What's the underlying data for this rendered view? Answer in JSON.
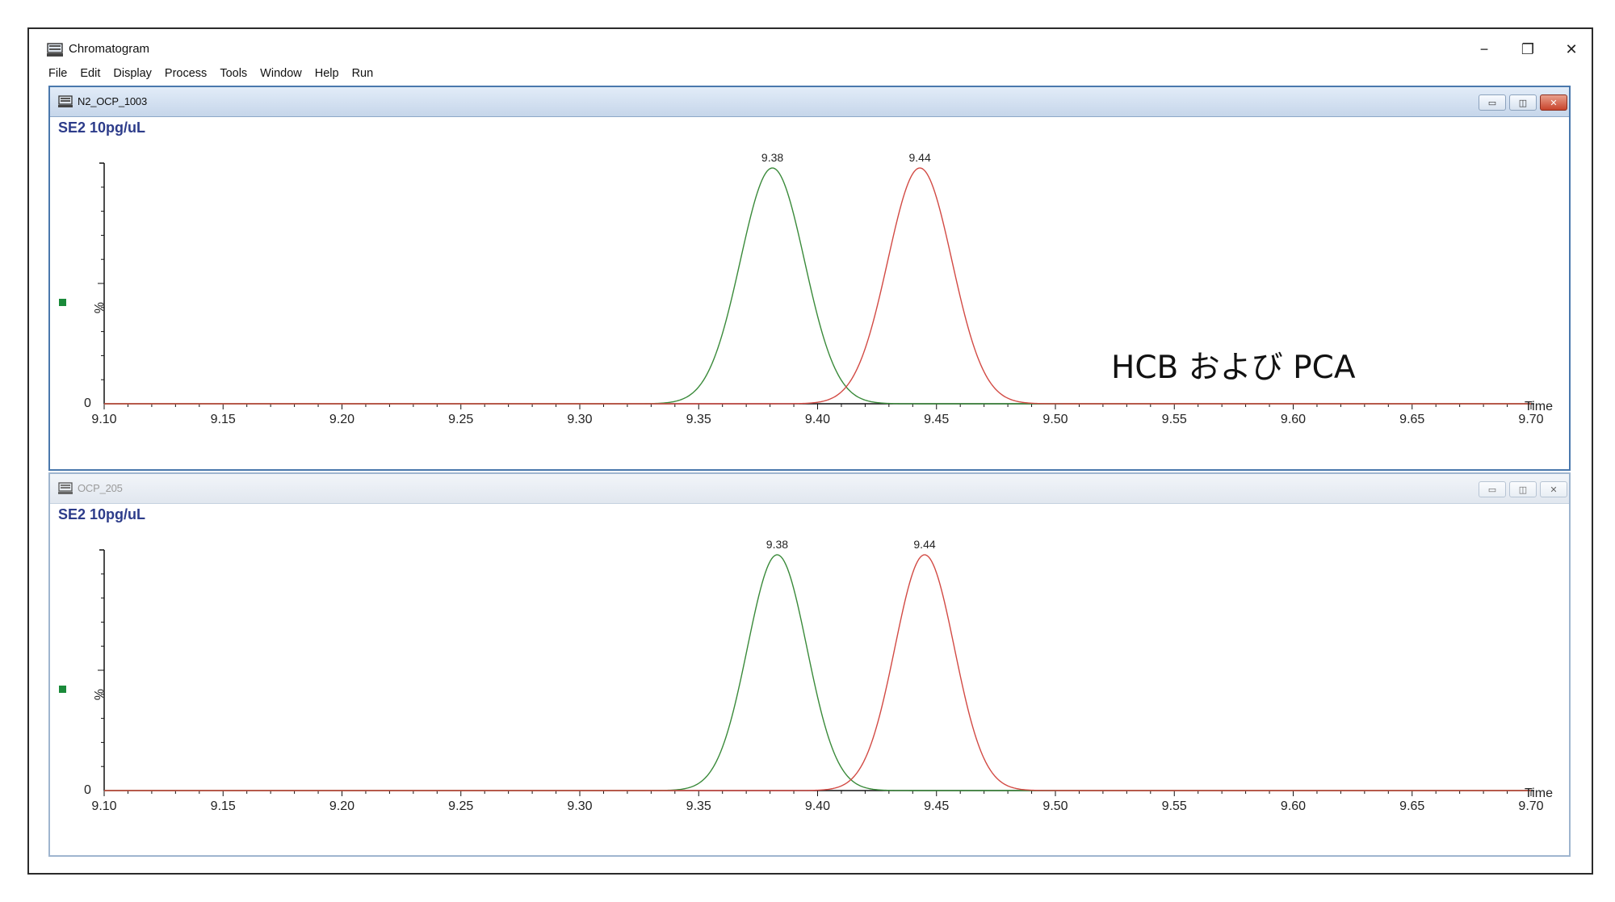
{
  "app": {
    "title": "Chromatogram",
    "icon": "chromatogram-app-icon",
    "controls": {
      "minimize": "−",
      "maximize": "❐",
      "close": "✕"
    }
  },
  "menu": [
    "File",
    "Edit",
    "Display",
    "Process",
    "Tools",
    "Window",
    "Help",
    "Run"
  ],
  "annotation": "HCB および PCA",
  "colors": {
    "trace1": "#3a8a3a",
    "trace2": "#d24a44",
    "accent": "#2d3c8a",
    "marker": "#1a8a3a"
  },
  "windows": [
    {
      "name": "N2_OCP_1003",
      "state": "active",
      "sample_label": "SE2 10pg/uL",
      "y_label": "%",
      "y_zero": "0",
      "x_label": "Time",
      "peaks": [
        {
          "label": "9.38"
        },
        {
          "label": "9.44"
        }
      ]
    },
    {
      "name": "OCP_205",
      "state": "inactive",
      "sample_label": "SE2 10pg/uL",
      "y_label": "%",
      "y_zero": "0",
      "x_label": "Time",
      "peaks": [
        {
          "label": "9.38"
        },
        {
          "label": "9.44"
        }
      ]
    }
  ],
  "chart_data": [
    {
      "type": "line",
      "x_ticks": [
        "9.10",
        "9.15",
        "9.20",
        "9.25",
        "9.30",
        "9.35",
        "9.40",
        "9.45",
        "9.50",
        "9.55",
        "9.60",
        "9.65",
        "9.70"
      ],
      "xlim": [
        9.1,
        9.7
      ],
      "ylim": [
        0,
        100
      ],
      "ylabel": "%",
      "xlabel": "Time",
      "series": [
        {
          "color": "#3a8a3a",
          "peak_rt": 9.381,
          "peak_height": 100,
          "sigma": 0.0135,
          "label": "9.38"
        },
        {
          "color": "#d24a44",
          "peak_rt": 9.443,
          "peak_height": 100,
          "sigma": 0.0135,
          "label": "9.44"
        }
      ]
    },
    {
      "type": "line",
      "x_ticks": [
        "9.10",
        "9.15",
        "9.20",
        "9.25",
        "9.30",
        "9.35",
        "9.40",
        "9.45",
        "9.50",
        "9.55",
        "9.60",
        "9.65",
        "9.70"
      ],
      "xlim": [
        9.1,
        9.7
      ],
      "ylim": [
        0,
        100
      ],
      "ylabel": "%",
      "xlabel": "Time",
      "series": [
        {
          "color": "#3a8a3a",
          "peak_rt": 9.383,
          "peak_height": 100,
          "sigma": 0.0125,
          "label": "9.38"
        },
        {
          "color": "#d24a44",
          "peak_rt": 9.445,
          "peak_height": 100,
          "sigma": 0.0125,
          "label": "9.44"
        }
      ]
    }
  ]
}
